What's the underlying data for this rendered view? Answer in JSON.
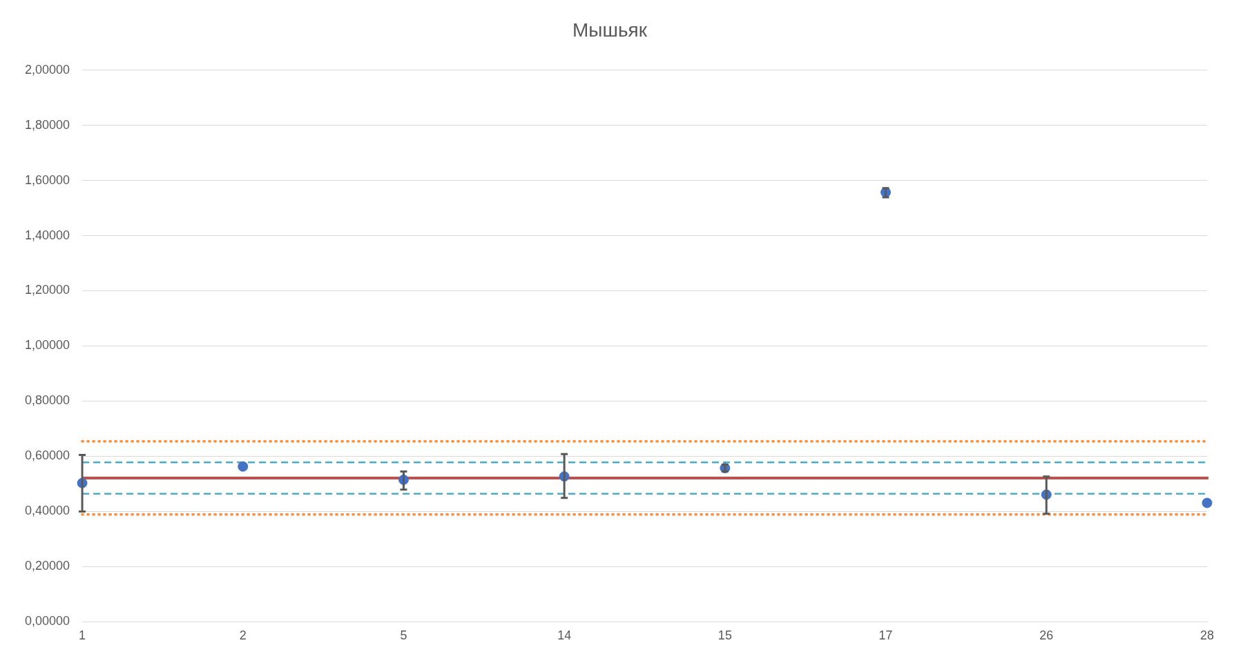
{
  "chart_data": {
    "type": "scatter",
    "title": "Мышьяк",
    "categories": [
      "1",
      "2",
      "5",
      "14",
      "15",
      "17",
      "26",
      "28"
    ],
    "series": [
      {
        "color": "#4472c4",
        "values": [
          0.503,
          0.563,
          0.515,
          0.527,
          0.557,
          1.557,
          0.461,
          0.431
        ],
        "errors": [
          [
            0.4,
            0.605
          ],
          null,
          [
            0.479,
            0.545
          ],
          [
            0.449,
            0.608
          ],
          [
            0.545,
            0.57
          ],
          [
            1.539,
            1.572
          ],
          [
            0.392,
            0.527
          ],
          null
        ]
      }
    ],
    "ylim": [
      0,
      2
    ],
    "yticks": [
      {
        "value": 0,
        "label": "0,00000"
      },
      {
        "value": 0.2,
        "label": "0,20000"
      },
      {
        "value": 0.4,
        "label": "0,40000"
      },
      {
        "value": 0.6,
        "label": "0,60000"
      },
      {
        "value": 0.8,
        "label": "0,80000"
      },
      {
        "value": 1,
        "label": "1,00000"
      },
      {
        "value": 1.2,
        "label": "1,20000"
      },
      {
        "value": 1.4,
        "label": "1,40000"
      },
      {
        "value": 1.6,
        "label": "1,60000"
      },
      {
        "value": 1.8,
        "label": "1,80000"
      },
      {
        "value": 2,
        "label": "2,00000"
      }
    ],
    "ref_lines": [
      {
        "axis": "y",
        "value": 0.521,
        "color": "#c0504d",
        "line_style": "solid"
      },
      {
        "axis": "y",
        "value": 0.578,
        "color": "#4bacc6",
        "line_style": "dashed"
      },
      {
        "axis": "y",
        "value": 0.464,
        "color": "#4bacc6",
        "line_style": "dashed"
      },
      {
        "axis": "y",
        "value": 0.654,
        "color": "#f79646",
        "line_style": "dotted"
      },
      {
        "axis": "y",
        "value": 0.389,
        "color": "#f79646",
        "line_style": "dotted"
      }
    ],
    "grid": "y",
    "legend": false,
    "marker": "circle"
  }
}
